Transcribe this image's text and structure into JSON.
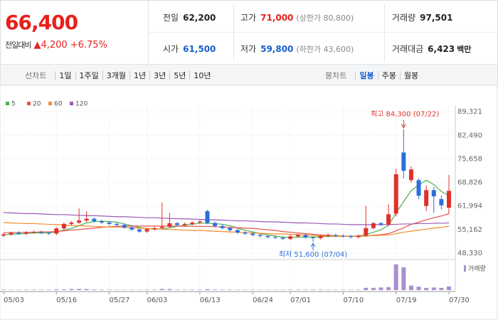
{
  "header": {
    "price": "66,400",
    "change_label": "전일대비",
    "change": "▲4,200",
    "change_rate": "+6.75%",
    "price_color": "#e8201c",
    "info": [
      {
        "label": "전일",
        "value": "62,200",
        "color": "#222222"
      },
      {
        "label": "고가",
        "value": "71,000",
        "note": "(상한가 80,800)",
        "color": "#e8201c"
      },
      {
        "label": "거래량",
        "value": "97,501",
        "color": "#222222"
      },
      {
        "label": "시가",
        "value": "61,500",
        "color": "#1a5fd0"
      },
      {
        "label": "저가",
        "value": "59,800",
        "note": "(하한가 43,600)",
        "color": "#1a5fd0"
      },
      {
        "label": "거래대금",
        "value": "6,423",
        "unit": "백만",
        "color": "#222222"
      }
    ]
  },
  "toolbar": {
    "line_chart": "선차트",
    "periods": [
      "1일",
      "1주일",
      "3개월",
      "1년",
      "3년",
      "5년",
      "10년"
    ],
    "candle_chart": "봉차트",
    "candle_periods": [
      "일봉",
      "주봉",
      "월봉"
    ],
    "active": 0
  },
  "chart_data": {
    "type": "candlestick",
    "categories": [
      "05/03",
      null,
      null,
      null,
      null,
      null,
      null,
      "05/16",
      null,
      null,
      null,
      null,
      null,
      null,
      "05/27",
      null,
      null,
      null,
      null,
      "06/03",
      null,
      null,
      null,
      null,
      null,
      null,
      "06/13",
      null,
      null,
      null,
      null,
      null,
      null,
      "06/24",
      null,
      null,
      null,
      null,
      "07/01",
      null,
      null,
      null,
      null,
      null,
      null,
      "07/10",
      null,
      null,
      null,
      null,
      null,
      null,
      "07/19",
      null,
      null,
      null,
      null,
      null,
      null,
      "07/30"
    ],
    "open": [
      53400,
      53800,
      54300,
      54000,
      54300,
      54500,
      54200,
      54000,
      55500,
      56800,
      57200,
      57800,
      58300,
      57600,
      57200,
      56800,
      56500,
      55800,
      55200,
      54600,
      55300,
      55600,
      56000,
      57000,
      56500,
      56800,
      57200,
      60500,
      57100,
      56200,
      55600,
      55000,
      54300,
      54000,
      53600,
      53300,
      53000,
      52800,
      52500,
      53200,
      53600,
      52900,
      52700,
      53300,
      53600,
      53400,
      53200,
      53000,
      53400,
      55600,
      57000,
      56600,
      59800,
      77500,
      69500,
      69500,
      62000,
      66600,
      64000,
      61500
    ],
    "high": [
      54200,
      54600,
      54700,
      54700,
      54900,
      54900,
      54600,
      55900,
      57200,
      57600,
      61300,
      60500,
      58700,
      58000,
      57600,
      57200,
      56900,
      56200,
      55600,
      55700,
      56000,
      63000,
      60000,
      57400,
      57200,
      57600,
      57900,
      60900,
      57500,
      56600,
      56000,
      55400,
      54700,
      54400,
      54000,
      53700,
      53400,
      53200,
      53600,
      54000,
      54000,
      53300,
      53700,
      54000,
      54000,
      53800,
      53600,
      53800,
      62000,
      57400,
      57400,
      62500,
      72800,
      84300,
      73500,
      70000,
      68000,
      67500,
      65000,
      71000
    ],
    "low": [
      53000,
      53400,
      53600,
      53600,
      53900,
      53800,
      53600,
      53600,
      55100,
      56400,
      56800,
      57400,
      57200,
      56800,
      56400,
      56100,
      55400,
      54800,
      54200,
      54200,
      54900,
      55200,
      55600,
      56100,
      56100,
      56400,
      56800,
      56700,
      55800,
      55200,
      54600,
      53900,
      53600,
      53200,
      52900,
      52600,
      52400,
      52100,
      52100,
      52800,
      52500,
      51600,
      52300,
      52900,
      53000,
      52800,
      52600,
      52600,
      53000,
      55200,
      56200,
      56200,
      59000,
      70000,
      68800,
      64000,
      60500,
      60000,
      61000,
      59800
    ],
    "close": [
      53800,
      54200,
      54000,
      54300,
      54500,
      54200,
      54000,
      55500,
      56800,
      57200,
      57800,
      58300,
      57600,
      57200,
      56800,
      56500,
      55800,
      55200,
      54600,
      55300,
      55600,
      56000,
      57000,
      56500,
      56800,
      57200,
      57500,
      57100,
      56200,
      55600,
      55000,
      54300,
      54000,
      53600,
      53300,
      53000,
      52800,
      52500,
      53200,
      53600,
      52900,
      52700,
      53300,
      53600,
      53400,
      53200,
      53000,
      53400,
      55600,
      57000,
      56600,
      59600,
      71200,
      72200,
      72600,
      65000,
      66600,
      64800,
      62200,
      66400
    ],
    "up_color": "#e0302a",
    "down_color": "#2a6fdb",
    "ylim": [
      47100,
      91200
    ],
    "yticks": [
      {
        "value": 89321,
        "label": "89,321"
      },
      {
        "value": 82490,
        "label": "82,490"
      },
      {
        "value": 75658,
        "label": "75,658"
      },
      {
        "value": 68826,
        "label": "68,826"
      },
      {
        "value": 61994,
        "label": "61,994"
      },
      {
        "value": 55162,
        "label": "55,162"
      },
      {
        "value": 48330,
        "label": "48,330"
      }
    ],
    "moving_averages": [
      {
        "name": "5",
        "color": "#4cb050",
        "values": [
          53700,
          53800,
          53900,
          54000,
          54200,
          54200,
          54200,
          54500,
          55000,
          55500,
          56300,
          57100,
          57500,
          57600,
          57500,
          57300,
          56800,
          56300,
          55800,
          55500,
          55300,
          55300,
          55700,
          56100,
          56400,
          56700,
          57000,
          57000,
          56900,
          56700,
          56300,
          55600,
          55000,
          54500,
          54000,
          53600,
          53300,
          53000,
          52900,
          53000,
          53000,
          53000,
          53100,
          53200,
          53200,
          53200,
          53300,
          53300,
          53700,
          54400,
          55100,
          56400,
          60000,
          63300,
          66400,
          68100,
          69500,
          68200,
          66200,
          65000
        ]
      },
      {
        "name": "20",
        "color": "#e8524a",
        "values": [
          54300,
          54300,
          54300,
          54400,
          54400,
          54500,
          54500,
          54600,
          54800,
          55000,
          55200,
          55400,
          55600,
          55800,
          56000,
          56100,
          56200,
          56200,
          56200,
          56200,
          56200,
          56200,
          56200,
          56200,
          56100,
          56100,
          56100,
          56100,
          56000,
          55900,
          55800,
          55700,
          55600,
          55500,
          55300,
          55100,
          54900,
          54600,
          54400,
          54200,
          54000,
          53800,
          53600,
          53500,
          53400,
          53300,
          53200,
          53200,
          53300,
          53500,
          53700,
          54000,
          54800,
          55700,
          56700,
          57300,
          58000,
          58600,
          59100,
          59800
        ]
      },
      {
        "name": "60",
        "color": "#f28c28",
        "values": [
          57200,
          57100,
          57000,
          56900,
          56900,
          56800,
          56700,
          56600,
          56500,
          56400,
          56300,
          56200,
          56100,
          56000,
          55900,
          55900,
          55800,
          55700,
          55600,
          55500,
          55400,
          55300,
          55200,
          55100,
          55000,
          54900,
          54900,
          54800,
          54700,
          54600,
          54500,
          54400,
          54300,
          54200,
          54100,
          54000,
          53900,
          53900,
          53800,
          53700,
          53600,
          53500,
          53400,
          53300,
          53300,
          53200,
          53200,
          53200,
          53300,
          53400,
          53500,
          53600,
          54000,
          54400,
          54700,
          55000,
          55300,
          55600,
          55800,
          56100
        ]
      },
      {
        "name": "120",
        "color": "#9b59b6",
        "values": [
          60100,
          60000,
          59900,
          59800,
          59800,
          59700,
          59600,
          59500,
          59500,
          59400,
          59300,
          59200,
          59200,
          59100,
          59000,
          58900,
          58900,
          58800,
          58700,
          58600,
          58600,
          58500,
          58400,
          58300,
          58300,
          58200,
          58100,
          58000,
          58000,
          57900,
          57800,
          57700,
          57700,
          57600,
          57500,
          57400,
          57400,
          57300,
          57200,
          57100,
          57100,
          57000,
          56900,
          56800,
          56800,
          56700,
          56600,
          56600,
          56600,
          56600,
          56600,
          56600,
          56700,
          56800,
          56800,
          56900,
          56900,
          57000,
          57000,
          57100
        ]
      }
    ],
    "volume": {
      "name": "거래량",
      "color": "#a890d0",
      "ylim": [
        0,
        750000
      ],
      "values": [
        12000,
        10000,
        9000,
        11000,
        10000,
        9000,
        10000,
        20000,
        18000,
        30000,
        32000,
        28000,
        15000,
        12000,
        11000,
        10000,
        9000,
        10000,
        9000,
        12000,
        11000,
        30000,
        28000,
        12000,
        10000,
        11000,
        12000,
        25000,
        14000,
        12000,
        11000,
        10000,
        9000,
        9000,
        8000,
        9000,
        8000,
        9000,
        12000,
        11000,
        10000,
        14000,
        12000,
        10000,
        9000,
        10000,
        9000,
        11000,
        60000,
        60000,
        70000,
        80000,
        680000,
        600000,
        120000,
        90000,
        60000,
        70000,
        60000,
        97501
      ]
    },
    "annotations": {
      "high": "최고 84,300 (07/22)",
      "low": "최저 51,600 (07/04)",
      "high_color": "#e0302a",
      "low_color": "#2a6fdb"
    }
  }
}
